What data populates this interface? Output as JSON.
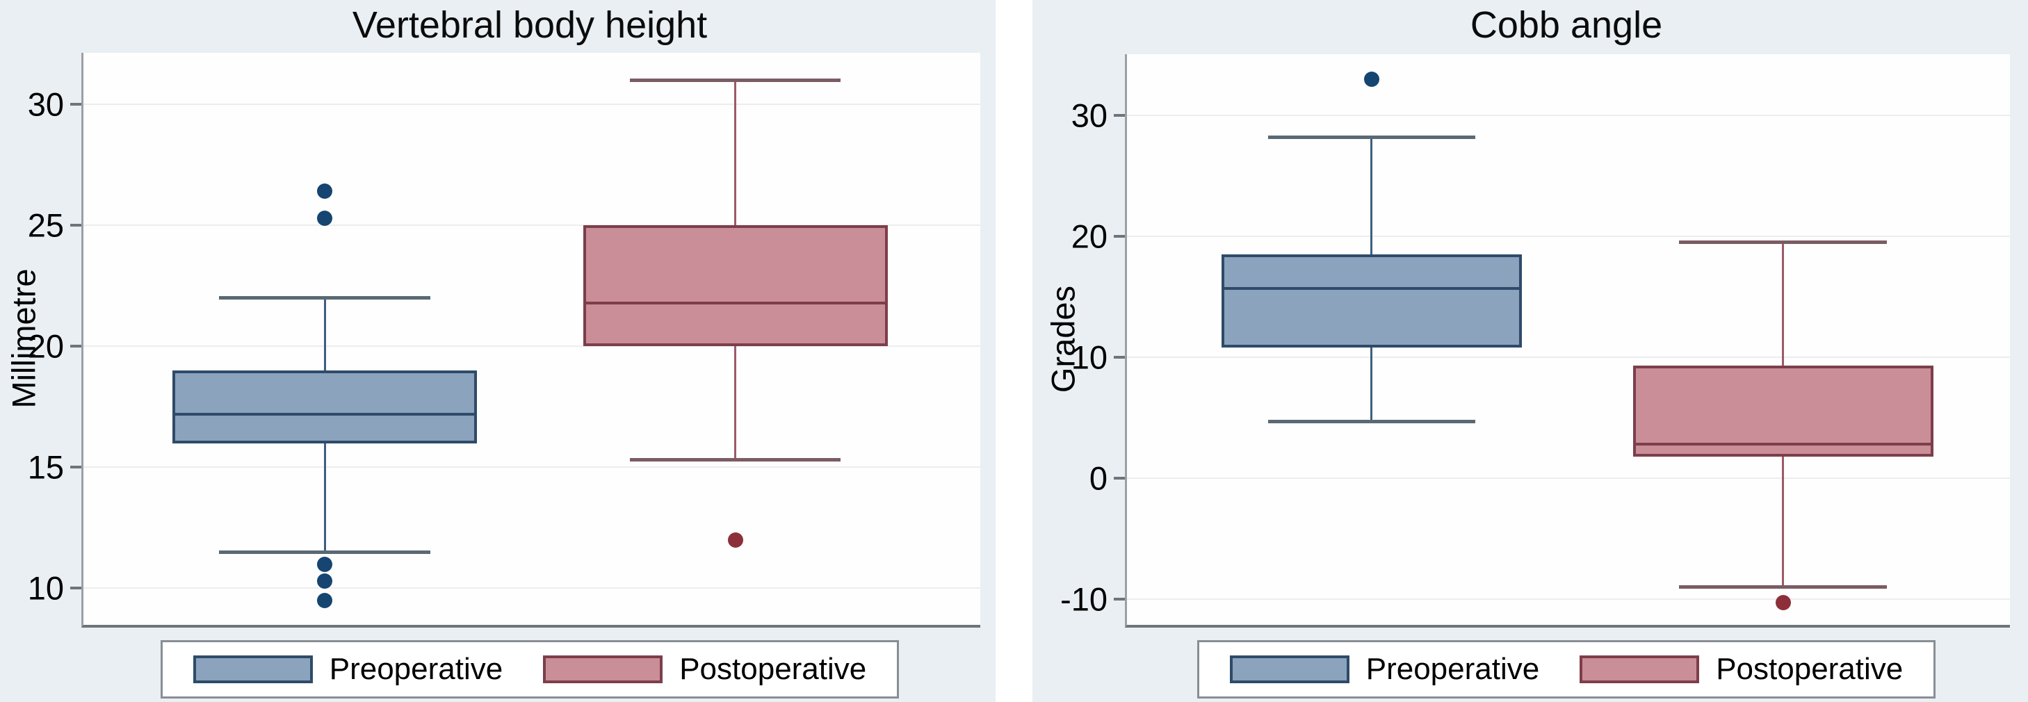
{
  "figure_background": "#ffffff",
  "panel_background": "#e9eff3",
  "plot_background": "#fefefe",
  "gridline_color": "#efeced",
  "axis_color": "#6e747a",
  "legend_border_color": "#888e94",
  "chart_data": [
    {
      "type": "box",
      "title": "Vertebral body height",
      "ylabel": "Millimetre",
      "yticks": [
        30,
        25,
        20,
        15,
        10
      ],
      "ylim": [
        8.49,
        32.13
      ],
      "grid": true,
      "legend_position": "bottom",
      "categories": [
        "Preoperative",
        "Postoperative"
      ],
      "series": [
        {
          "name": "Preoperative",
          "q1": 16,
          "median": 17.2,
          "q3": 19,
          "whisker_low": 11.5,
          "whisker_high": 22,
          "outliers": [
            26.4,
            25.3,
            11,
            10.3,
            9.5
          ],
          "fill": "#8ca3bd",
          "border": "#2e4b69",
          "whisker": "#3d5f7e",
          "cap": "#5a6974",
          "dot": "#154570"
        },
        {
          "name": "Postoperative",
          "q1": 20,
          "median": 21.8,
          "q3": 25,
          "whisker_low": 15.3,
          "whisker_high": 31,
          "outliers": [
            12
          ],
          "fill": "#ca8e99",
          "border": "#7d3e4a",
          "whisker": "#9c5a66",
          "cap": "#7b5c62",
          "dot": "#8d2f39"
        }
      ]
    },
    {
      "type": "box",
      "title": "Cobb angle",
      "ylabel": "Grades",
      "yticks": [
        30,
        20,
        10,
        0,
        -10
      ],
      "ylim": [
        -12.14,
        35.06
      ],
      "grid": true,
      "legend_position": "bottom",
      "categories": [
        "Preoperative",
        "Postoperative"
      ],
      "series": [
        {
          "name": "Preoperative",
          "q1": 10.8,
          "median": 15.7,
          "q3": 18.5,
          "whisker_low": 4.7,
          "whisker_high": 28.2,
          "outliers": [
            33
          ],
          "fill": "#8ca3bd",
          "border": "#2e4b69",
          "whisker": "#3d5f7e",
          "cap": "#5a6974",
          "dot": "#154570"
        },
        {
          "name": "Postoperative",
          "q1": 1.8,
          "median": 2.8,
          "q3": 9.3,
          "whisker_low": -9,
          "whisker_high": 19.5,
          "outliers": [
            -10.3
          ],
          "fill": "#ca8e99",
          "border": "#7d3e4a",
          "whisker": "#9c5a66",
          "cap": "#7b5c62",
          "dot": "#8d2f39"
        }
      ]
    }
  ]
}
